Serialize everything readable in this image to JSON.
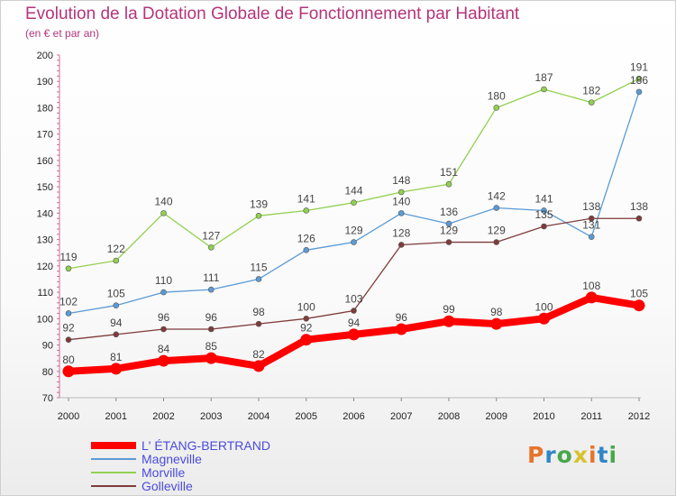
{
  "header": {
    "title": "Evolution de la Dotation Globale de Fonctionnement par Habitant",
    "subtitle": "(en € et par an)"
  },
  "logo": {
    "text": "Proxiti",
    "colors": [
      "#e8742a",
      "#2f86c8",
      "#48a84a",
      "#d8c22a"
    ]
  },
  "chart_data": {
    "type": "line",
    "title": "Evolution de la Dotation Globale de Fonctionnement par Habitant",
    "subtitle": "(en € et par an)",
    "x": [
      "2000",
      "2001",
      "2002",
      "2003",
      "2004",
      "2005",
      "2006",
      "2007",
      "2008",
      "2009",
      "2010",
      "2011",
      "2012"
    ],
    "y_ticks": [
      70,
      80,
      90,
      100,
      110,
      120,
      130,
      140,
      150,
      160,
      170,
      180,
      190,
      200
    ],
    "ylim": [
      70,
      200
    ],
    "grid": false,
    "legend_position": "bottom-left",
    "series": [
      {
        "name": "L' ÉTANG-BERTRAND",
        "color": "#ff0000",
        "values": [
          80,
          81,
          84,
          85,
          82,
          92,
          94,
          96,
          99,
          98,
          100,
          108,
          105
        ]
      },
      {
        "name": "Magneville",
        "color": "#5b9bd5",
        "values": [
          102,
          105,
          110,
          111,
          115,
          126,
          129,
          140,
          136,
          142,
          141,
          131,
          186
        ]
      },
      {
        "name": "Morville",
        "color": "#92d050",
        "values": [
          119,
          122,
          140,
          127,
          139,
          141,
          144,
          148,
          151,
          180,
          187,
          182,
          191
        ]
      },
      {
        "name": "Golleville",
        "color": "#7f3b3b",
        "values": [
          92,
          94,
          96,
          96,
          98,
          100,
          103,
          128,
          129,
          129,
          135,
          138,
          138
        ]
      }
    ]
  }
}
